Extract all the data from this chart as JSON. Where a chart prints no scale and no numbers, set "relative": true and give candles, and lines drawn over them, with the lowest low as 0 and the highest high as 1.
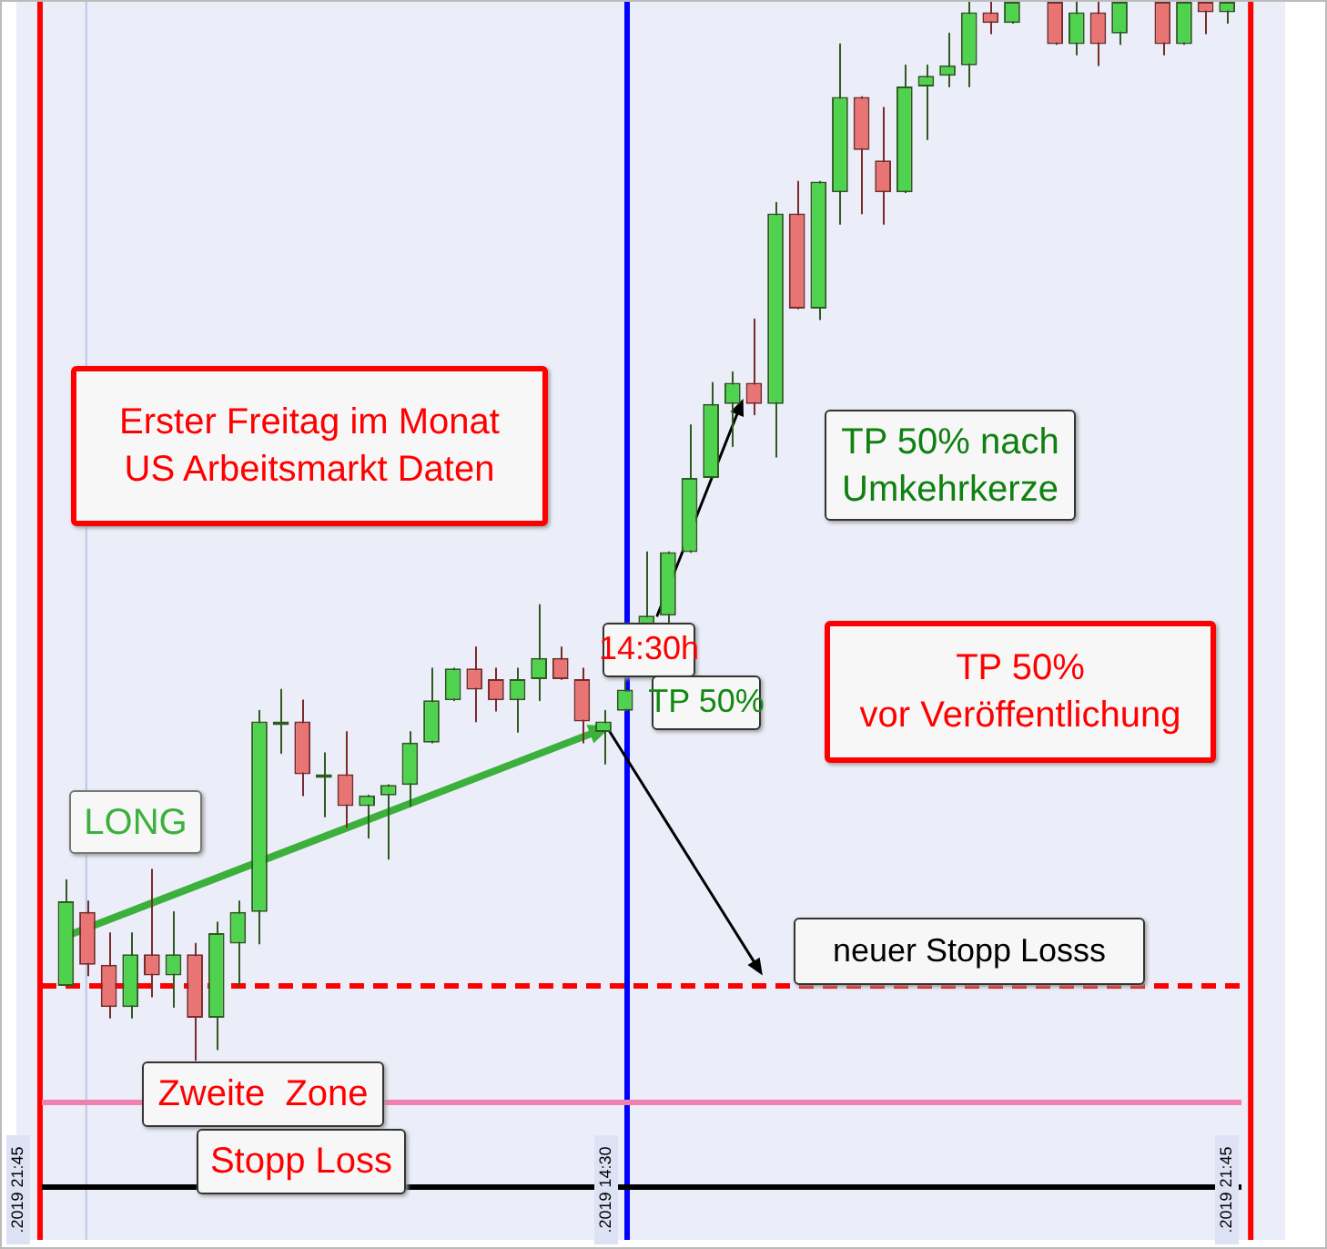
{
  "chart_data": {
    "type": "candlestick",
    "relative": true,
    "categories": [
      null,
      null,
      null,
      null,
      null,
      null,
      null,
      null,
      null,
      null,
      null,
      null,
      null,
      null,
      null,
      null,
      null,
      null,
      null,
      null,
      null,
      null,
      null,
      null,
      null,
      null,
      null,
      null,
      null,
      null,
      null,
      null,
      null,
      null,
      null,
      null,
      null,
      null,
      null,
      null,
      null,
      null,
      null,
      null,
      null,
      null,
      null,
      null,
      null,
      null,
      null,
      null,
      null,
      null,
      null
    ],
    "ohlc": [
      [
        0.07,
        0.17,
        0.07,
        0.15
      ],
      [
        0.14,
        0.15,
        0.08,
        0.09
      ],
      [
        0.09,
        0.12,
        0.04,
        0.05
      ],
      [
        0.05,
        0.12,
        0.04,
        0.1
      ],
      [
        0.1,
        0.18,
        0.06,
        0.08
      ],
      [
        0.08,
        0.14,
        0.05,
        0.1
      ],
      [
        0.1,
        0.11,
        0,
        0.04
      ],
      [
        0.04,
        0.13,
        0.01,
        0.12
      ],
      [
        0.11,
        0.15,
        0.07,
        0.14
      ],
      [
        0.14,
        0.33,
        0.11,
        0.32
      ],
      [
        0.32,
        0.35,
        0.29,
        0.32
      ],
      [
        0.32,
        0.34,
        0.25,
        0.27
      ],
      [
        0.27,
        0.29,
        0.23,
        0.27
      ],
      [
        0.27,
        0.31,
        0.22,
        0.24
      ],
      [
        0.24,
        0.25,
        0.21,
        0.25
      ],
      [
        0.25,
        0.26,
        0.19,
        0.26
      ],
      [
        0.26,
        0.31,
        0.24,
        0.3
      ],
      [
        0.3,
        0.37,
        0.3,
        0.34
      ],
      [
        0.34,
        0.37,
        0.34,
        0.37
      ],
      [
        0.37,
        0.39,
        0.32,
        0.35
      ],
      [
        0.36,
        0.37,
        0.33,
        0.34
      ],
      [
        0.34,
        0.37,
        0.31,
        0.36
      ],
      [
        0.36,
        0.43,
        0.34,
        0.38
      ],
      [
        0.38,
        0.39,
        0.36,
        0.36
      ],
      [
        0.36,
        0.37,
        0.3,
        0.32
      ],
      [
        0.31,
        0.33,
        0.28,
        0.32
      ],
      [
        0.33,
        0.36,
        0.33,
        0.35
      ],
      [
        0.41,
        0.48,
        0.41,
        0.42
      ],
      [
        0.42,
        0.48,
        0.41,
        0.48
      ],
      [
        0.48,
        0.6,
        0.48,
        0.55
      ],
      [
        0.55,
        0.64,
        0.55,
        0.62
      ],
      [
        0.62,
        0.65,
        0.58,
        0.64
      ],
      [
        0.64,
        0.7,
        0.61,
        0.62
      ],
      [
        0.62,
        0.81,
        0.57,
        0.8
      ],
      [
        0.8,
        0.83,
        0.71,
        0.71
      ],
      [
        0.71,
        0.83,
        0.7,
        0.83
      ],
      [
        0.82,
        0.96,
        0.79,
        0.91
      ],
      [
        0.91,
        0.91,
        0.8,
        0.86
      ],
      [
        0.85,
        0.9,
        0.79,
        0.82
      ],
      [
        0.82,
        0.94,
        0.82,
        0.92
      ],
      [
        0.92,
        0.94,
        0.87,
        0.93
      ],
      [
        0.93,
        0.97,
        0.92,
        0.94
      ],
      [
        0.94,
        1,
        0.92,
        0.99
      ],
      [
        0.99,
        1,
        0.97,
        0.98
      ],
      [
        0.98,
        1,
        0.98,
        1
      ],
      null,
      [
        1,
        1,
        0.96,
        0.96
      ],
      [
        0.96,
        1,
        0.95,
        0.99
      ],
      [
        0.99,
        1,
        0.94,
        0.96
      ],
      [
        0.97,
        1,
        0.96,
        1
      ],
      null,
      [
        1,
        1,
        0.95,
        0.96
      ],
      [
        0.96,
        1,
        0.96,
        1
      ],
      [
        1,
        1,
        0.97,
        0.99
      ],
      [
        0.99,
        1,
        0.98,
        1
      ]
    ],
    "ref_lines": [
      {
        "axis": "y",
        "value": 0.07,
        "color": "#ff0000",
        "line_style": "dashed"
      },
      {
        "axis": "y",
        "value": -0.04,
        "color": "#f080b0",
        "line_style": "solid"
      },
      {
        "axis": "y",
        "value": -0.12,
        "color": "#000000",
        "line_style": "solid"
      }
    ],
    "annotations": [
      "Erster Freitag im Monat\nUS Arbeitsmarkt Daten",
      "LONG",
      "14:30h",
      "TP 50%",
      "TP 50% nach\nUmkehrkerze",
      "TP 50%\nvor Veröffentlichung",
      "neuer Stopp Losss",
      "Zweite  Zone",
      "Stopp Loss",
      ".2019 21:45",
      ".2019 14:30",
      ".2019 21:45"
    ]
  }
}
